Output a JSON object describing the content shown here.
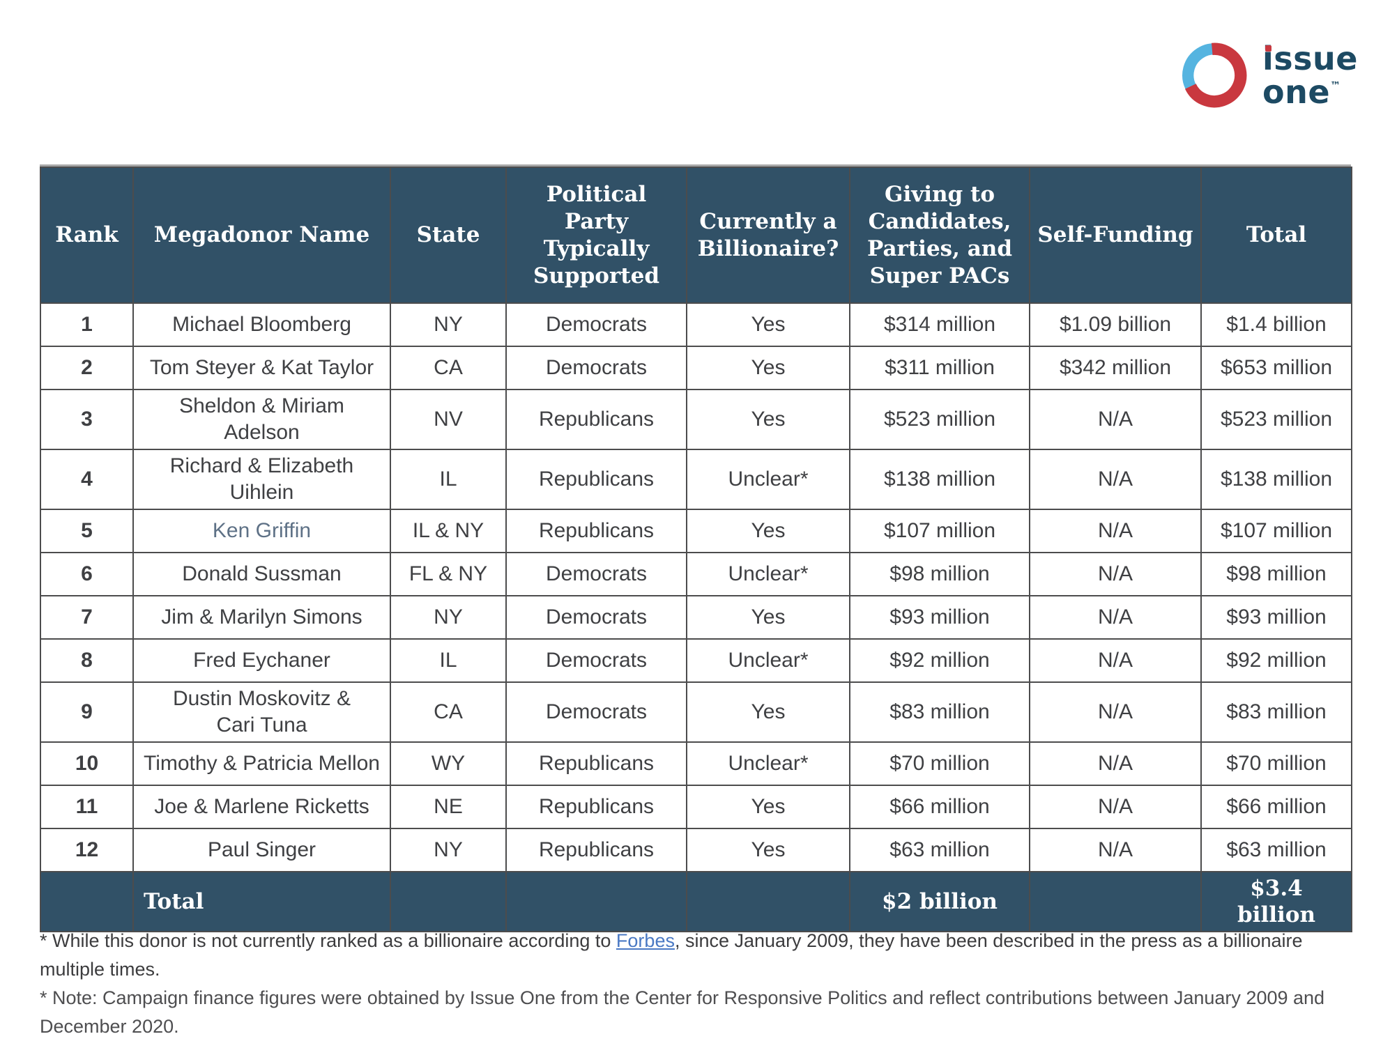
{
  "logo": {
    "word1": "issue",
    "word2": "one",
    "tm": "™"
  },
  "table": {
    "columns": [
      {
        "key": "rank",
        "label": "Rank"
      },
      {
        "key": "name",
        "label": "Megadonor Name"
      },
      {
        "key": "state",
        "label": "State"
      },
      {
        "key": "party",
        "label": "Political Party Typically Supported"
      },
      {
        "key": "billionaire",
        "label": "Currently a Billionaire?"
      },
      {
        "key": "giving",
        "label": "Giving to Candidates, Parties, and Super PACs"
      },
      {
        "key": "self_funding",
        "label": "Self-Funding"
      },
      {
        "key": "total",
        "label": "Total"
      }
    ],
    "rows": [
      {
        "rank": "1",
        "name": "Michael Bloomberg",
        "state": "NY",
        "party": "Democrats",
        "billionaire": "Yes",
        "giving": "$314 million",
        "self_funding": "$1.09 billion",
        "total": "$1.4 billion"
      },
      {
        "rank": "2",
        "name": "Tom Steyer & Kat Taylor",
        "state": "CA",
        "party": "Democrats",
        "billionaire": "Yes",
        "giving": "$311 million",
        "self_funding": "$342 million",
        "total": "$653 million"
      },
      {
        "rank": "3",
        "name": "Sheldon & Miriam\nAdelson",
        "state": "NV",
        "party": "Republicans",
        "billionaire": "Yes",
        "giving": "$523 million",
        "self_funding": "N/A",
        "total": "$523 million"
      },
      {
        "rank": "4",
        "name": "Richard & Elizabeth\nUihlein",
        "state": "IL",
        "party": "Republicans",
        "billionaire": "Unclear*",
        "giving": "$138 million",
        "self_funding": "N/A",
        "total": "$138 million"
      },
      {
        "rank": "5",
        "name": "Ken Griffin",
        "state": "IL & NY",
        "party": "Republicans",
        "billionaire": "Yes",
        "giving": "$107 million",
        "self_funding": "N/A",
        "total": "$107 million",
        "name_style": "muted"
      },
      {
        "rank": "6",
        "name": "Donald Sussman",
        "state": "FL & NY",
        "party": "Democrats",
        "billionaire": "Unclear*",
        "giving": "$98 million",
        "self_funding": "N/A",
        "total": "$98 million"
      },
      {
        "rank": "7",
        "name": "Jim & Marilyn Simons",
        "state": "NY",
        "party": "Democrats",
        "billionaire": "Yes",
        "giving": "$93 million",
        "self_funding": "N/A",
        "total": "$93 million"
      },
      {
        "rank": "8",
        "name": "Fred Eychaner",
        "state": "IL",
        "party": "Democrats",
        "billionaire": "Unclear*",
        "giving": "$92 million",
        "self_funding": "N/A",
        "total": "$92 million"
      },
      {
        "rank": "9",
        "name": "Dustin Moskovitz &\nCari Tuna",
        "state": "CA",
        "party": "Democrats",
        "billionaire": "Yes",
        "giving": "$83 million",
        "self_funding": "N/A",
        "total": "$83 million"
      },
      {
        "rank": "10",
        "name": "Timothy & Patricia Mellon",
        "state": "WY",
        "party": "Republicans",
        "billionaire": "Unclear*",
        "giving": "$70 million",
        "self_funding": "N/A",
        "total": "$70 million"
      },
      {
        "rank": "11",
        "name": "Joe & Marlene Ricketts",
        "state": "NE",
        "party": "Republicans",
        "billionaire": "Yes",
        "giving": "$66 million",
        "self_funding": "N/A",
        "total": "$66 million"
      },
      {
        "rank": "12",
        "name": "Paul Singer",
        "state": "NY",
        "party": "Republicans",
        "billionaire": "Yes",
        "giving": "$63 million",
        "self_funding": "N/A",
        "total": "$63 million"
      }
    ],
    "total_row": {
      "name": "Total",
      "giving": "$2 billion",
      "total": "$3.4 billion"
    }
  },
  "footnotes": [
    {
      "prefix": "* While this donor is not currently ranked as a billionaire according to ",
      "link_text": "Forbes",
      "suffix": ", since January 2009, they have been described in the press as a billionaire multiple times."
    },
    {
      "text": "* Note: Campaign finance figures were obtained by Issue One from the Center for Responsive Politics and reflect contributions between January 2009 and December 2020."
    }
  ],
  "colors": {
    "header_bg": "#315167",
    "cell_border": "#4c4c4d",
    "body_text": "#3f4043",
    "muted_name": "#5e7186",
    "link_blue": "#4a79c4",
    "logo_blue": "#55b4e0",
    "logo_red": "#c9383f",
    "logo_navy": "#1d4a63"
  }
}
